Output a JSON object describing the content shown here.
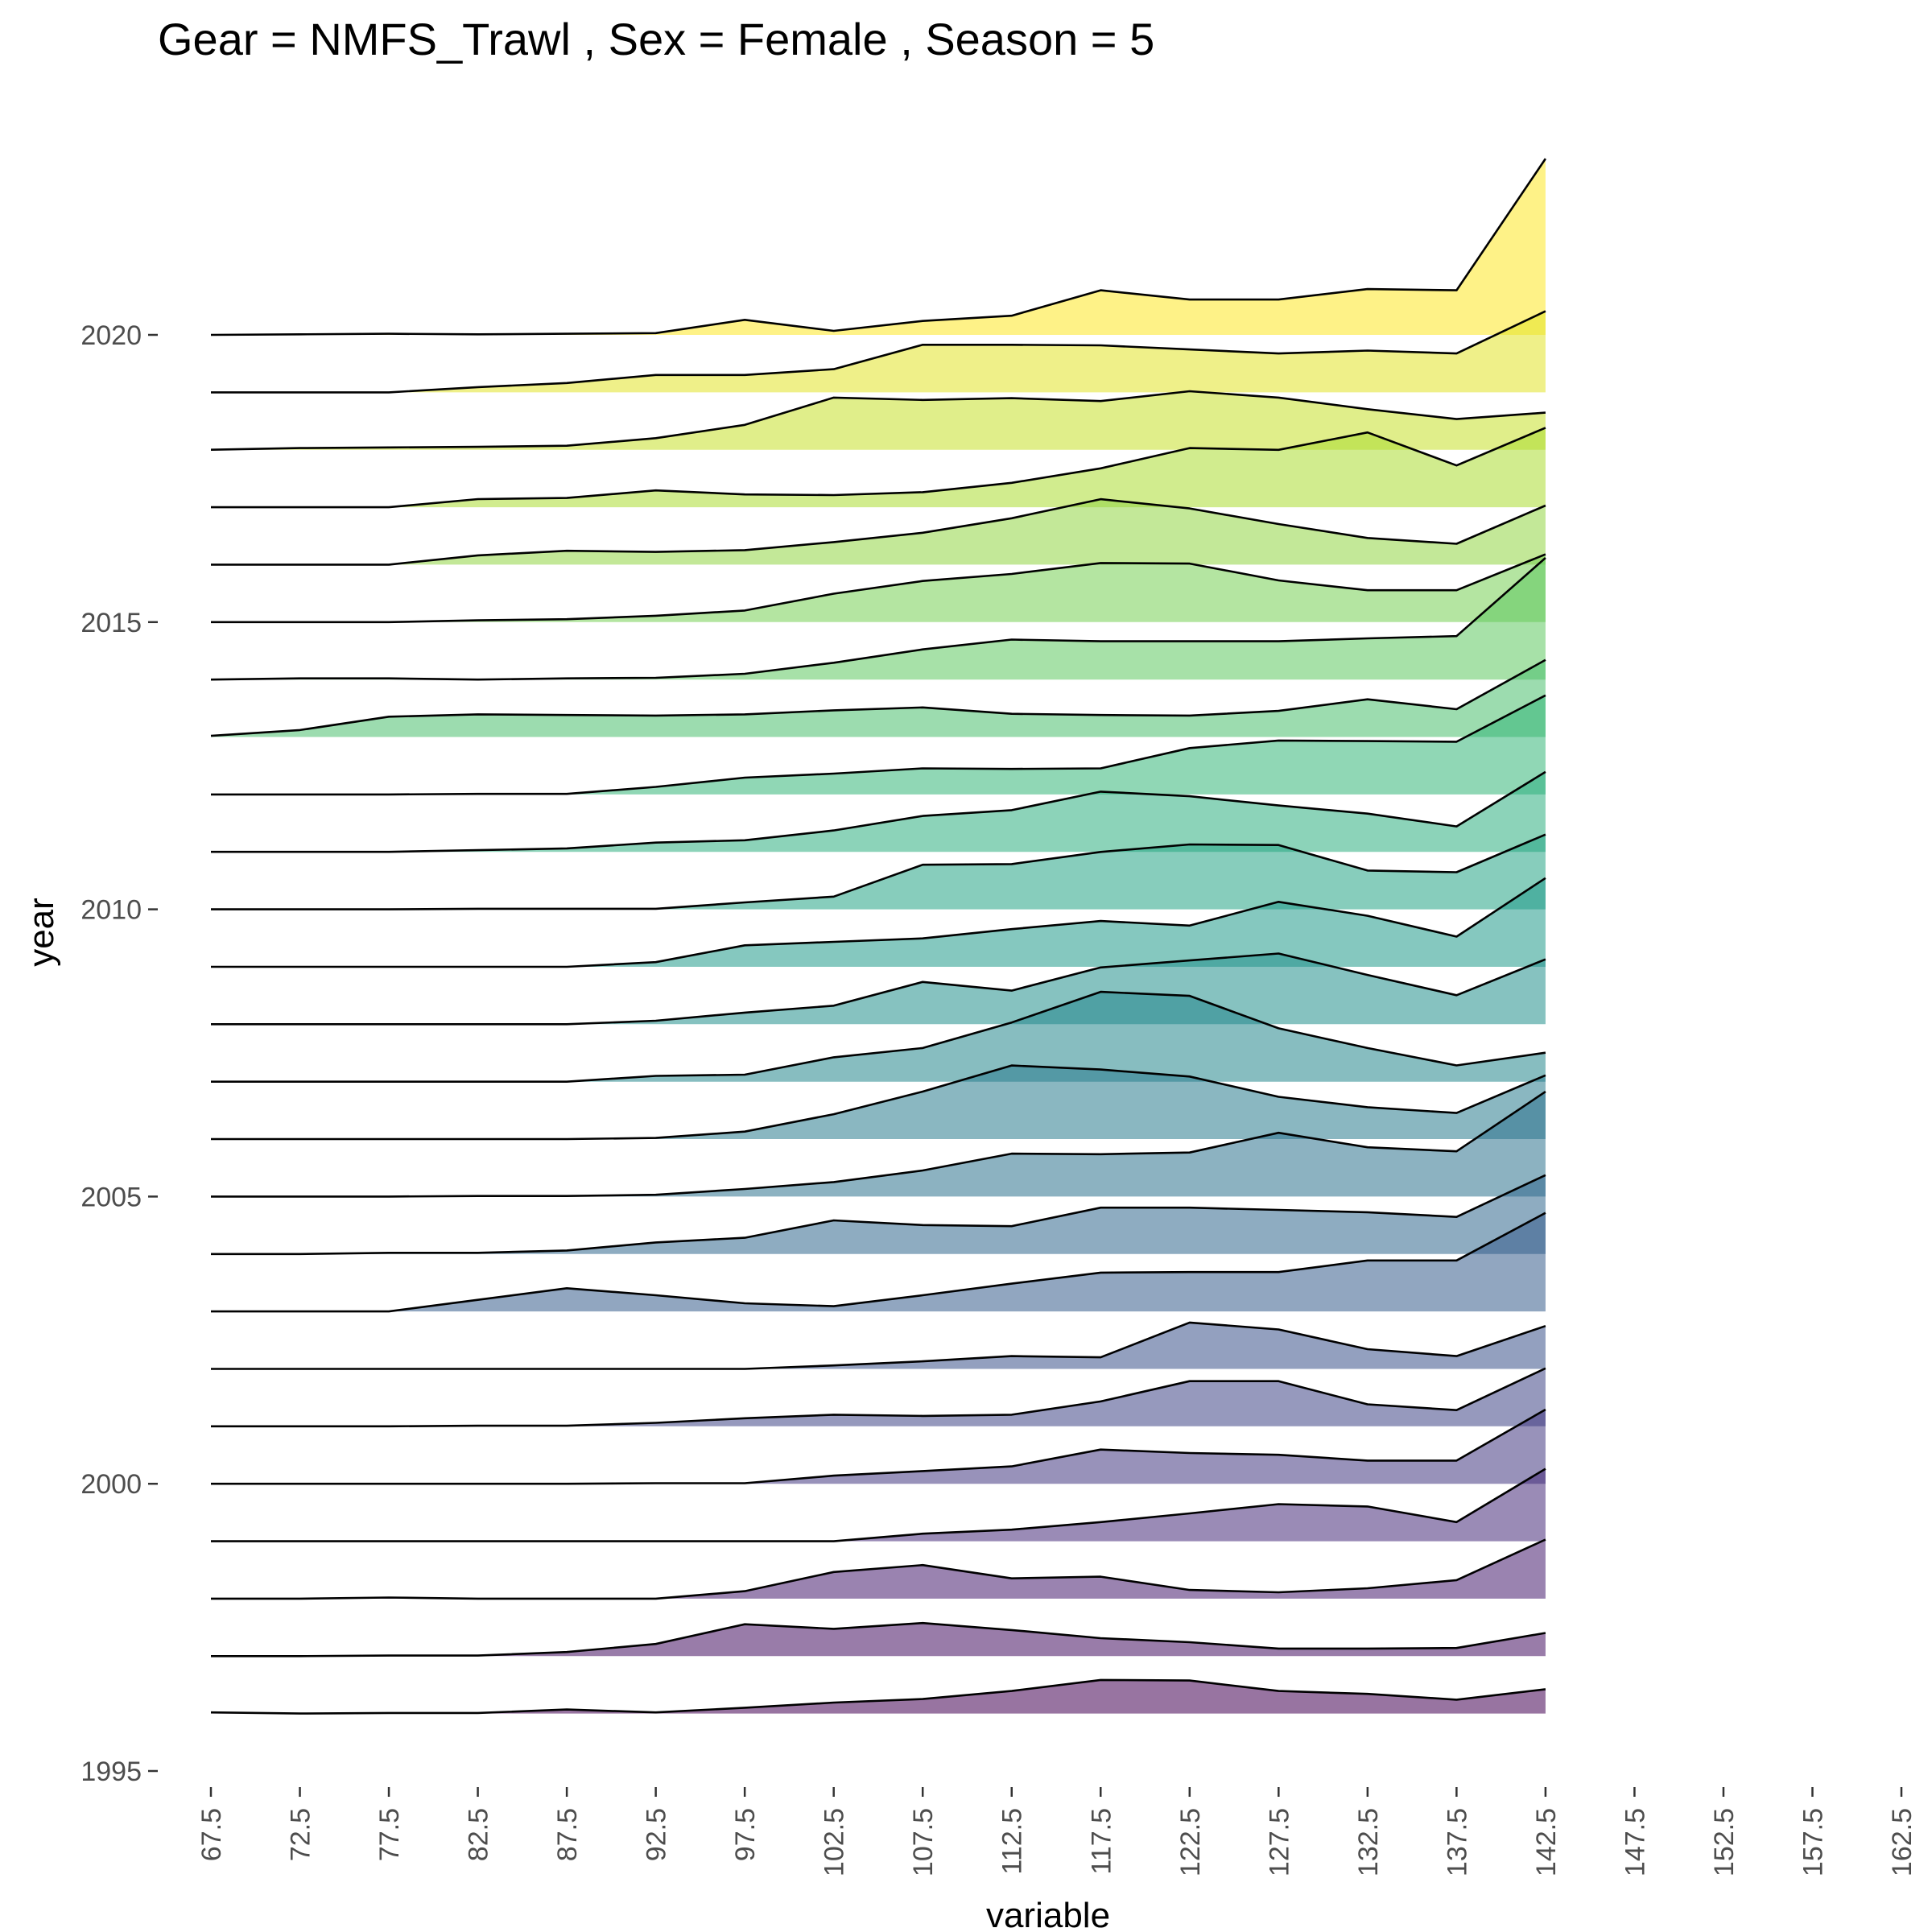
{
  "chart_data": {
    "type": "ridgeline",
    "title": "Gear = NMFS_Trawl , Sex = Female , Season = 5",
    "xlabel": "variable",
    "ylabel": "year",
    "x_ticks": [
      67.5,
      72.5,
      77.5,
      82.5,
      87.5,
      92.5,
      97.5,
      102.5,
      107.5,
      112.5,
      117.5,
      122.5,
      127.5,
      132.5,
      137.5,
      142.5,
      147.5,
      152.5,
      157.5,
      162.5
    ],
    "y_ticks": [
      1995,
      2000,
      2005,
      2010,
      2015,
      2020
    ],
    "xlim": [
      67.5,
      162.5
    ],
    "ylim": [
      1995,
      2020.2
    ],
    "grid": false,
    "legend": "none",
    "colormap": "viridis",
    "x": [
      67.5,
      72.5,
      77.5,
      82.5,
      87.5,
      92.5,
      97.5,
      102.5,
      107.5,
      112.5,
      117.5,
      122.5,
      127.5,
      132.5,
      137.5,
      142.5
    ],
    "series": [
      {
        "name": "1996",
        "values": [
          0.02,
          0.0,
          0.01,
          0.01,
          0.07,
          0.02,
          0.1,
          0.19,
          0.25,
          0.39,
          0.58,
          0.57,
          0.39,
          0.34,
          0.24,
          0.42
        ]
      },
      {
        "name": "1997",
        "values": [
          0.0,
          0.0,
          0.01,
          0.01,
          0.07,
          0.21,
          0.55,
          0.47,
          0.57,
          0.45,
          0.31,
          0.24,
          0.13,
          0.13,
          0.14,
          0.4
        ]
      },
      {
        "name": "1998",
        "values": [
          0.0,
          0.0,
          0.02,
          0.0,
          0.0,
          0.0,
          0.13,
          0.46,
          0.58,
          0.35,
          0.38,
          0.15,
          0.11,
          0.18,
          0.32,
          1.02
        ]
      },
      {
        "name": "1999",
        "values": [
          0.0,
          0.0,
          0.0,
          0.0,
          0.0,
          0.0,
          0.0,
          0.0,
          0.13,
          0.2,
          0.33,
          0.48,
          0.64,
          0.6,
          0.33,
          1.25
        ]
      },
      {
        "name": "2000",
        "values": [
          0.0,
          0.0,
          0.0,
          0.0,
          0.0,
          0.01,
          0.01,
          0.14,
          0.22,
          0.3,
          0.59,
          0.53,
          0.5,
          0.4,
          0.4,
          1.28
        ]
      },
      {
        "name": "2001",
        "values": [
          0.0,
          0.0,
          0.0,
          0.01,
          0.01,
          0.06,
          0.14,
          0.2,
          0.18,
          0.2,
          0.43,
          0.78,
          0.78,
          0.38,
          0.28,
          1.0
        ]
      },
      {
        "name": "2002",
        "values": [
          0.0,
          0.0,
          0.0,
          0.0,
          0.0,
          0.0,
          0.0,
          0.06,
          0.13,
          0.22,
          0.2,
          0.8,
          0.68,
          0.34,
          0.22,
          0.74
        ]
      },
      {
        "name": "2003",
        "values": [
          0.0,
          0.0,
          0.0,
          0.2,
          0.4,
          0.28,
          0.14,
          0.09,
          0.28,
          0.48,
          0.67,
          0.68,
          0.68,
          0.88,
          0.88,
          1.7
        ]
      },
      {
        "name": "2004",
        "values": [
          0.0,
          0.0,
          0.02,
          0.02,
          0.06,
          0.2,
          0.28,
          0.58,
          0.5,
          0.48,
          0.8,
          0.8,
          0.76,
          0.72,
          0.64,
          1.36
        ]
      },
      {
        "name": "2005",
        "values": [
          0.0,
          0.0,
          0.0,
          0.01,
          0.01,
          0.03,
          0.13,
          0.25,
          0.45,
          0.74,
          0.73,
          0.76,
          1.1,
          0.85,
          0.78,
          1.81
        ]
      },
      {
        "name": "2006",
        "values": [
          0.0,
          0.0,
          0.0,
          0.0,
          0.0,
          0.02,
          0.13,
          0.43,
          0.82,
          1.27,
          1.2,
          1.08,
          0.73,
          0.55,
          0.45,
          1.1
        ]
      },
      {
        "name": "2007",
        "values": [
          0.0,
          0.0,
          0.0,
          0.0,
          0.0,
          0.1,
          0.12,
          0.42,
          0.58,
          1.02,
          1.55,
          1.48,
          0.92,
          0.58,
          0.28,
          0.5
        ]
      },
      {
        "name": "2008",
        "values": [
          0.0,
          0.0,
          0.0,
          0.0,
          0.0,
          0.06,
          0.2,
          0.32,
          0.73,
          0.58,
          0.98,
          1.1,
          1.22,
          0.85,
          0.5,
          1.12
        ]
      },
      {
        "name": "2009",
        "values": [
          0.0,
          0.0,
          0.0,
          0.0,
          0.0,
          0.08,
          0.37,
          0.43,
          0.49,
          0.65,
          0.79,
          0.71,
          1.12,
          0.88,
          0.52,
          1.53
        ]
      },
      {
        "name": "2010",
        "values": [
          0.0,
          0.0,
          0.0,
          0.01,
          0.01,
          0.01,
          0.12,
          0.22,
          0.77,
          0.78,
          0.99,
          1.12,
          1.11,
          0.67,
          0.64,
          1.29
        ]
      },
      {
        "name": "2011",
        "values": [
          0.0,
          0.0,
          0.0,
          0.03,
          0.06,
          0.16,
          0.2,
          0.37,
          0.62,
          0.72,
          1.04,
          0.96,
          0.8,
          0.66,
          0.44,
          1.38
        ]
      },
      {
        "name": "2012",
        "values": [
          0.0,
          0.0,
          0.0,
          0.01,
          0.01,
          0.13,
          0.29,
          0.36,
          0.45,
          0.44,
          0.45,
          0.8,
          0.93,
          0.92,
          0.91,
          1.71
        ]
      },
      {
        "name": "2013",
        "values": [
          0.02,
          0.12,
          0.35,
          0.39,
          0.38,
          0.37,
          0.39,
          0.46,
          0.51,
          0.4,
          0.38,
          0.37,
          0.45,
          0.65,
          0.48,
          1.33
        ]
      },
      {
        "name": "2014",
        "values": [
          0.0,
          0.02,
          0.02,
          0.0,
          0.02,
          0.03,
          0.1,
          0.29,
          0.52,
          0.69,
          0.66,
          0.66,
          0.66,
          0.71,
          0.75,
          2.1
        ]
      },
      {
        "name": "2015",
        "values": [
          0.0,
          0.0,
          0.0,
          0.03,
          0.05,
          0.11,
          0.2,
          0.49,
          0.71,
          0.83,
          1.02,
          1.01,
          0.72,
          0.55,
          0.55,
          1.17
        ]
      },
      {
        "name": "2016",
        "values": [
          0.0,
          0.0,
          0.0,
          0.16,
          0.24,
          0.22,
          0.25,
          0.39,
          0.55,
          0.8,
          1.13,
          0.97,
          0.7,
          0.46,
          0.36,
          1.02
        ]
      },
      {
        "name": "2017",
        "values": [
          0.0,
          0.0,
          0.0,
          0.14,
          0.16,
          0.29,
          0.22,
          0.21,
          0.26,
          0.42,
          0.67,
          1.02,
          0.99,
          1.29,
          0.72,
          1.37
        ]
      },
      {
        "name": "2018",
        "values": [
          0.0,
          0.03,
          0.04,
          0.05,
          0.07,
          0.2,
          0.43,
          0.9,
          0.86,
          0.89,
          0.84,
          1.01,
          0.9,
          0.7,
          0.53,
          0.64
        ]
      },
      {
        "name": "2019",
        "values": [
          0.0,
          0.0,
          0.0,
          0.09,
          0.16,
          0.3,
          0.3,
          0.4,
          0.82,
          0.82,
          0.81,
          0.74,
          0.67,
          0.72,
          0.67,
          1.4
        ]
      },
      {
        "name": "2020",
        "values": [
          0.0,
          0.01,
          0.02,
          0.01,
          0.02,
          0.03,
          0.26,
          0.07,
          0.24,
          0.33,
          0.77,
          0.61,
          0.61,
          0.79,
          0.77,
          3.04
        ]
      }
    ]
  }
}
